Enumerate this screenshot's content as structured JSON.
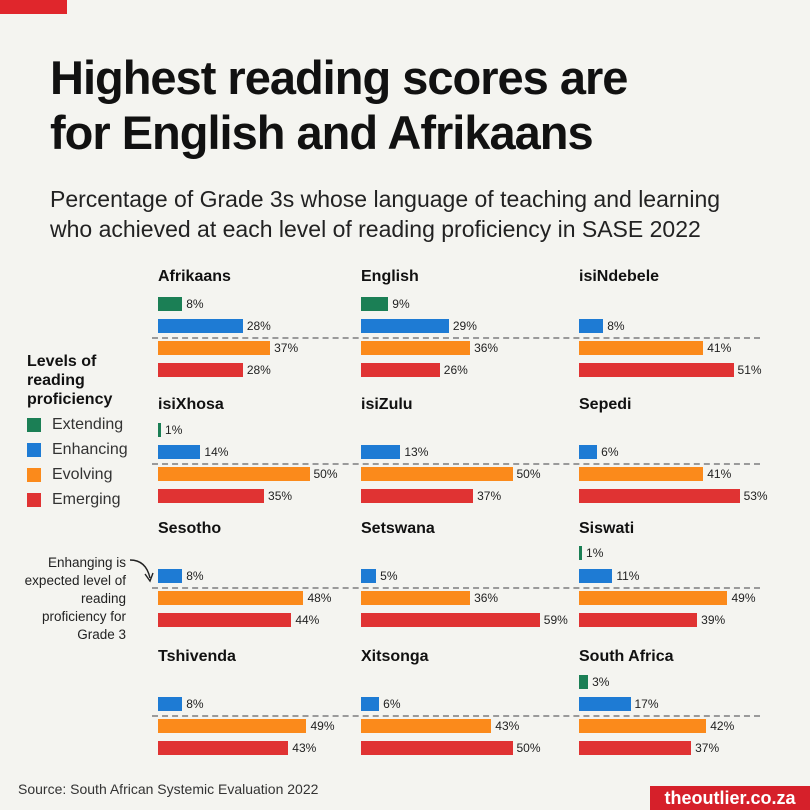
{
  "header": {
    "title_line1": "Highest reading scores are",
    "title_line2": "for English and Afrikaans",
    "subtitle_line1": "Percentage of Grade 3s whose language of teaching and learning",
    "subtitle_line2": "who achieved at each level of reading proficiency in SASE 2022"
  },
  "legend": {
    "title": "Levels of reading proficiency",
    "items": [
      {
        "label": "Extending",
        "color": "#1b7f55"
      },
      {
        "label": "Enhancing",
        "color": "#1e7bd4"
      },
      {
        "label": "Evolving",
        "color": "#fb8a1b"
      },
      {
        "label": "Emerging",
        "color": "#e03333"
      }
    ]
  },
  "note": "Enhanging is expected level of reading proficiency for Grade 3",
  "source": "Source: South African Systemic Evaluation 2022",
  "logo": "theoutlier.co.za",
  "chart_data": {
    "type": "bar",
    "title": "Highest reading scores are for English and Afrikaans",
    "unit": "%",
    "levels": [
      "Extending",
      "Enhancing",
      "Evolving",
      "Emerging"
    ],
    "panels": [
      {
        "name": "Afrikaans",
        "values": [
          8,
          28,
          37,
          28
        ]
      },
      {
        "name": "English",
        "values": [
          9,
          29,
          36,
          26
        ]
      },
      {
        "name": "isiNdebele",
        "values": [
          null,
          8,
          41,
          51
        ]
      },
      {
        "name": "isiXhosa",
        "values": [
          1,
          14,
          50,
          35
        ]
      },
      {
        "name": "isiZulu",
        "values": [
          null,
          13,
          50,
          37
        ]
      },
      {
        "name": "Sepedi",
        "values": [
          null,
          6,
          41,
          53
        ]
      },
      {
        "name": "Sesotho",
        "values": [
          null,
          8,
          48,
          44
        ]
      },
      {
        "name": "Setswana",
        "values": [
          null,
          5,
          36,
          59
        ]
      },
      {
        "name": "Siswati",
        "values": [
          1,
          11,
          49,
          39
        ]
      },
      {
        "name": "Tshivenda",
        "values": [
          null,
          8,
          49,
          43
        ]
      },
      {
        "name": "Xitsonga",
        "values": [
          null,
          6,
          43,
          50
        ]
      },
      {
        "name": "South Africa",
        "values": [
          3,
          17,
          42,
          37
        ]
      }
    ]
  }
}
